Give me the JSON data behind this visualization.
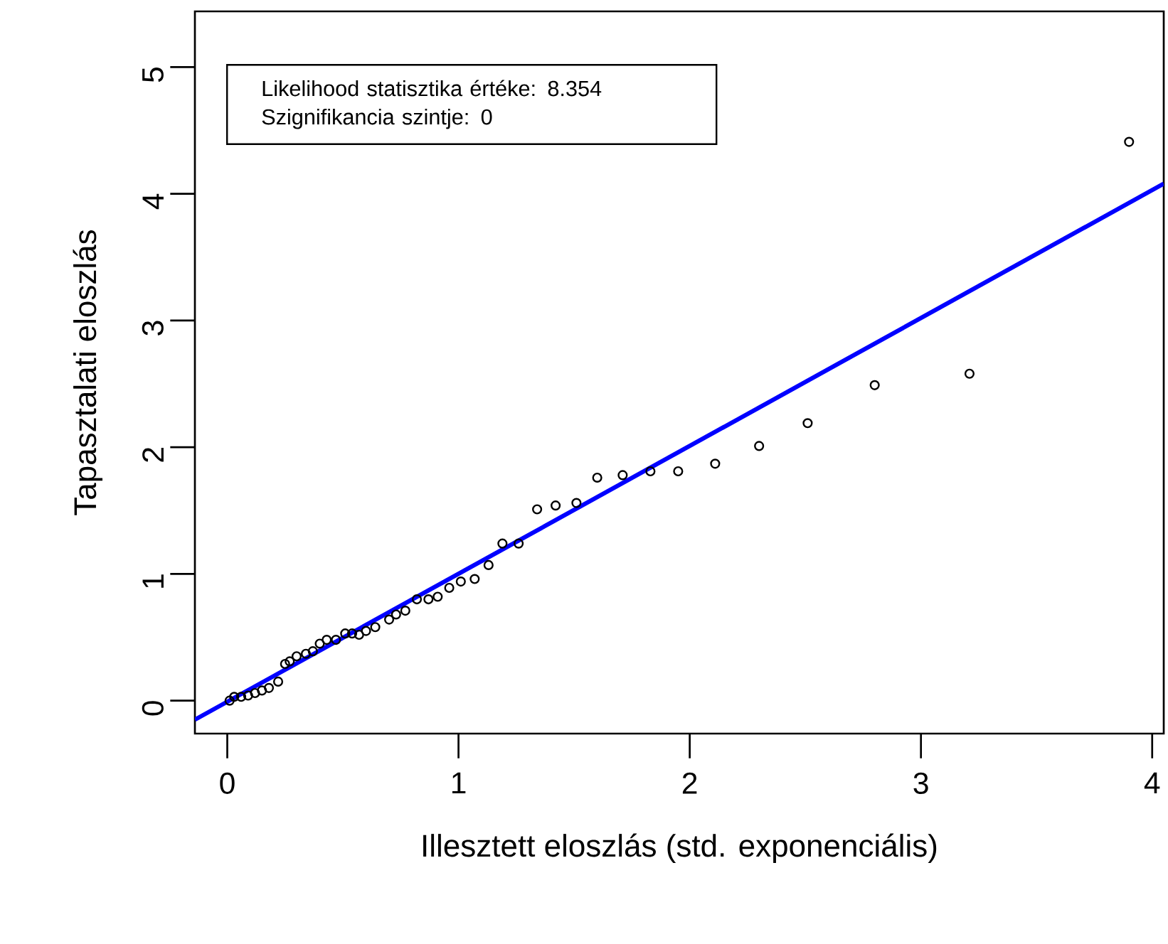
{
  "chart_data": {
    "type": "scatter",
    "xlabel": "Illesztett eloszlás (std. exponenciális)",
    "ylabel": "Tapasztalati eloszlás",
    "annotations": [
      "Likelihood statisztika értéke: 8.354",
      "Szignifikancia szintje: 0"
    ],
    "xlim": [
      -0.14,
      4.05
    ],
    "ylim": [
      -0.26,
      5.44
    ],
    "xticks": [
      0,
      1,
      2,
      3,
      4
    ],
    "yticks": [
      0,
      1,
      2,
      3,
      4,
      5
    ],
    "grid": false,
    "series": [
      {
        "color": "#000000",
        "marker": "circle",
        "x": [
          0.01,
          0.03,
          0.06,
          0.09,
          0.12,
          0.15,
          0.18,
          0.22,
          0.25,
          0.27,
          0.3,
          0.34,
          0.37,
          0.4,
          0.43,
          0.47,
          0.51,
          0.54,
          0.57,
          0.6,
          0.64,
          0.7,
          0.73,
          0.77,
          0.82,
          0.87,
          0.91,
          0.96,
          1.01,
          1.07,
          1.13,
          1.19,
          1.26,
          1.34,
          1.42,
          1.51,
          1.6,
          1.71,
          1.83,
          1.95,
          2.11,
          2.3,
          2.51,
          2.8,
          3.21,
          3.9
        ],
        "values": [
          0.0,
          0.03,
          0.03,
          0.04,
          0.06,
          0.08,
          0.1,
          0.15,
          0.29,
          0.31,
          0.35,
          0.37,
          0.39,
          0.45,
          0.48,
          0.48,
          0.53,
          0.53,
          0.52,
          0.55,
          0.58,
          0.64,
          0.68,
          0.71,
          0.8,
          0.8,
          0.82,
          0.89,
          0.94,
          0.96,
          1.07,
          1.24,
          1.24,
          1.51,
          1.54,
          1.56,
          1.76,
          1.78,
          1.81,
          1.81,
          1.87,
          2.01,
          2.19,
          2.49,
          2.58,
          4.41
        ]
      },
      {
        "type": "line",
        "color": "#0000ff",
        "marker": "none",
        "x": [
          -0.14,
          4.05
        ],
        "values": [
          -0.15,
          4.08
        ]
      }
    ]
  }
}
